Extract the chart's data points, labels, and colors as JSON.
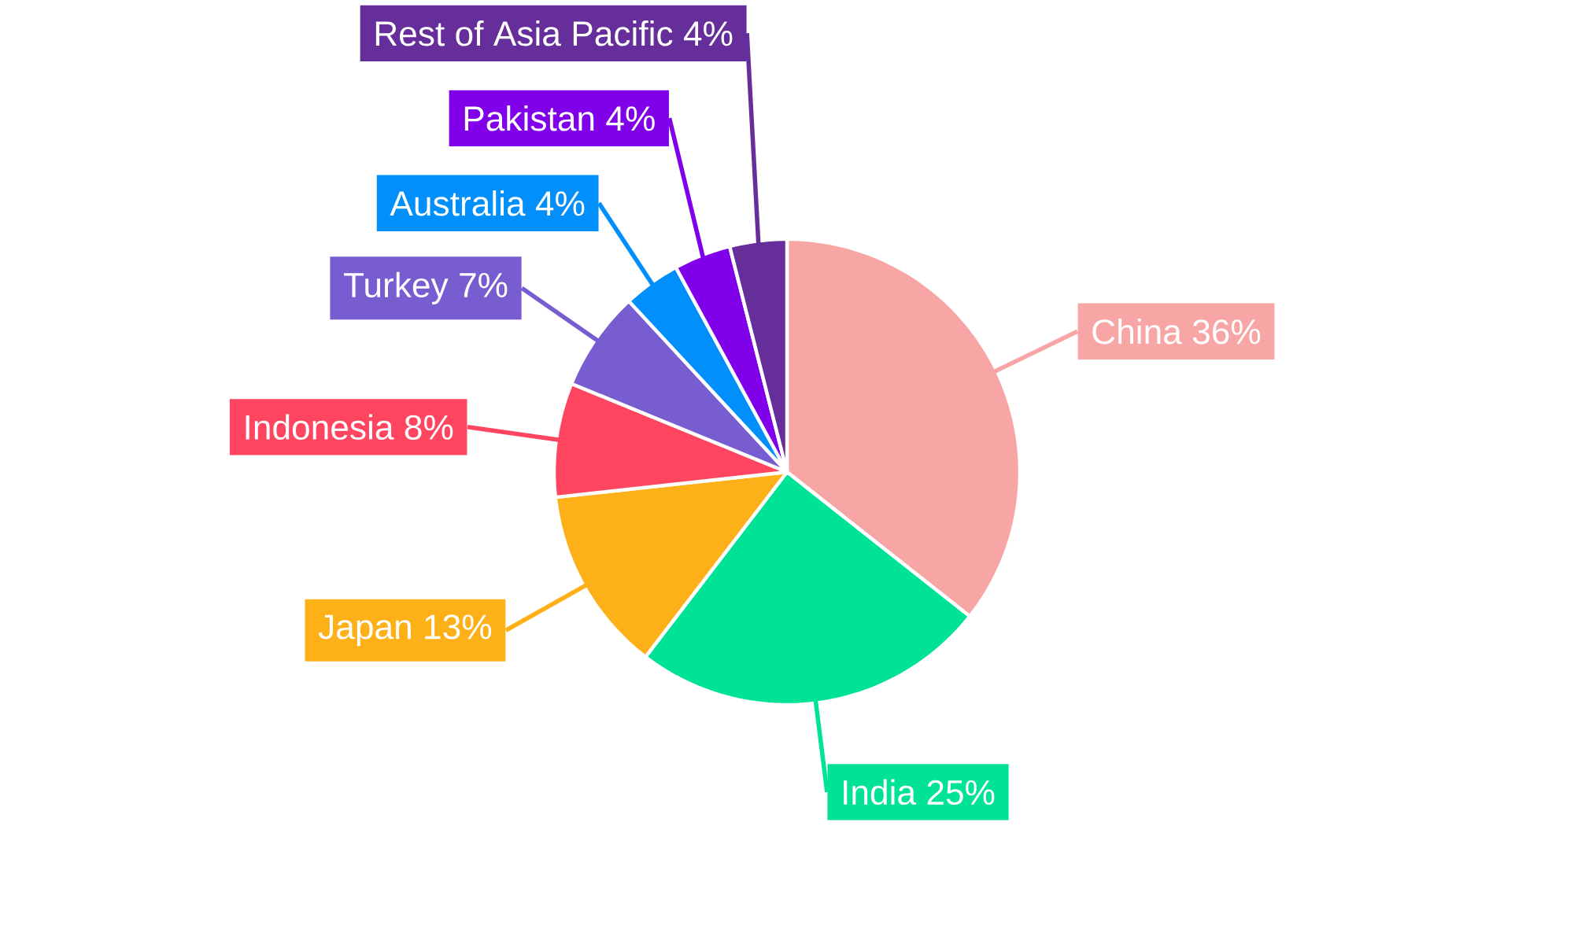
{
  "chart_data": {
    "type": "pie",
    "categories": [
      "China",
      "India",
      "Japan",
      "Indonesia",
      "Turkey",
      "Australia",
      "Pakistan",
      "Rest of Asia Pacific"
    ],
    "values": [
      36,
      25,
      13,
      8,
      7,
      4,
      4,
      4
    ],
    "value_labels": [
      "36%",
      "25%",
      "13%",
      "8%",
      "7%",
      "4%",
      "4%",
      "4%"
    ],
    "colors": [
      "#f8a5a5",
      "#00e396",
      "#feb019",
      "#ff4560",
      "#775dd0",
      "#008ffb",
      "#8000ea",
      "#662e9b"
    ]
  }
}
